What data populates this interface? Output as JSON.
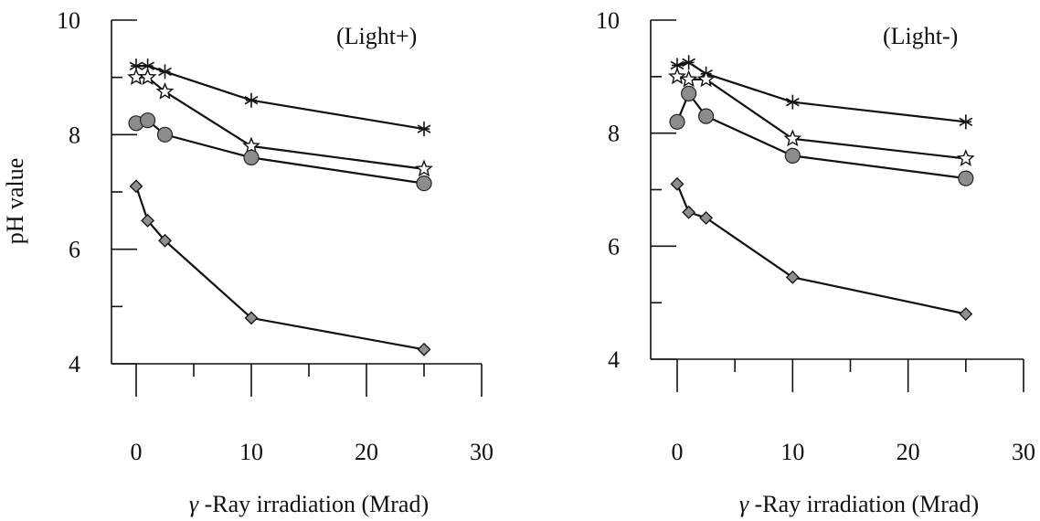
{
  "chart_data": [
    {
      "type": "line",
      "panel_label": "(Light+)",
      "xlabel_symbol": "γ",
      "xlabel": "-Ray irradiation (Mrad)",
      "ylabel": "pH value",
      "xlim": [
        0,
        30
      ],
      "ylim": [
        4,
        10
      ],
      "x_ticks": [
        0,
        10,
        20,
        30
      ],
      "y_tick_labels": [
        4,
        6,
        8,
        10
      ],
      "y_minor_ticks": [
        5,
        7,
        9
      ],
      "series": [
        {
          "marker": "asterisk",
          "x": [
            0,
            1,
            2.5,
            10,
            25
          ],
          "y": [
            9.2,
            9.2,
            9.1,
            8.6,
            8.1
          ]
        },
        {
          "marker": "star",
          "x": [
            0,
            1,
            2.5,
            10,
            25
          ],
          "y": [
            9.0,
            9.0,
            8.75,
            7.8,
            7.4
          ]
        },
        {
          "marker": "circle",
          "x": [
            0,
            1,
            2.5,
            10,
            25
          ],
          "y": [
            8.2,
            8.25,
            8.0,
            7.6,
            7.15
          ]
        },
        {
          "marker": "diamond",
          "x": [
            0,
            1,
            2.5,
            10,
            25
          ],
          "y": [
            7.1,
            6.5,
            6.15,
            4.8,
            4.25
          ]
        }
      ]
    },
    {
      "type": "line",
      "panel_label": "(Light-)",
      "xlabel_symbol": "γ",
      "xlabel": "-Ray irradiation (Mrad)",
      "ylabel": "",
      "xlim": [
        0,
        30
      ],
      "ylim": [
        4,
        10
      ],
      "x_ticks": [
        0,
        10,
        20,
        30
      ],
      "y_tick_labels": [
        4,
        6,
        8,
        10
      ],
      "y_minor_ticks": [
        5,
        7,
        9
      ],
      "series": [
        {
          "marker": "asterisk",
          "x": [
            0,
            1,
            2.5,
            10,
            25
          ],
          "y": [
            9.2,
            9.25,
            9.05,
            8.55,
            8.2
          ]
        },
        {
          "marker": "star",
          "x": [
            0,
            1,
            2.5,
            10,
            25
          ],
          "y": [
            9.0,
            8.95,
            8.95,
            7.9,
            7.55
          ]
        },
        {
          "marker": "circle",
          "x": [
            0,
            1,
            2.5,
            10,
            25
          ],
          "y": [
            8.2,
            8.7,
            8.3,
            7.6,
            7.2
          ]
        },
        {
          "marker": "diamond",
          "x": [
            0,
            1,
            2.5,
            10,
            25
          ],
          "y": [
            7.1,
            6.6,
            6.5,
            5.45,
            4.8
          ]
        }
      ]
    }
  ]
}
